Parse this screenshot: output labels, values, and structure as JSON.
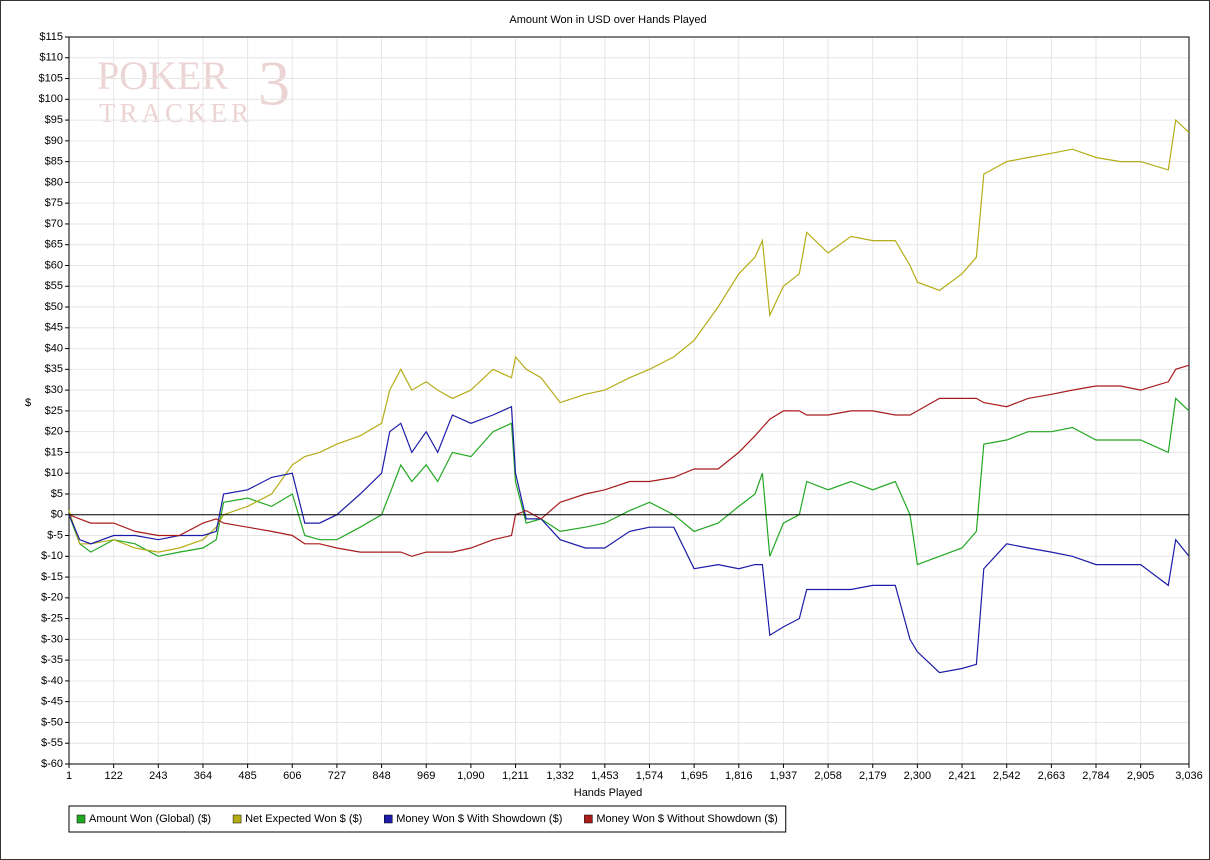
{
  "chart_data": {
    "type": "line",
    "title": "Amount Won in USD over Hands Played",
    "xlabel": "Hands Played",
    "ylabel": "$",
    "logo": {
      "line1": "POKER",
      "line2": "TRACKER",
      "mark": "3"
    },
    "xlim": [
      1,
      3036
    ],
    "ylim": [
      -60,
      115
    ],
    "grid": true,
    "zero_line": true,
    "legend": "bottom-left",
    "xticks": [
      1,
      122,
      243,
      364,
      485,
      606,
      727,
      848,
      969,
      {
        "value": 1090,
        "label": "1,090"
      },
      {
        "value": 1211,
        "label": "1,211"
      },
      {
        "value": 1332,
        "label": "1,332"
      },
      {
        "value": 1453,
        "label": "1,453"
      },
      {
        "value": 1574,
        "label": "1,574"
      },
      {
        "value": 1695,
        "label": "1,695"
      },
      {
        "value": 1816,
        "label": "1,816"
      },
      {
        "value": 1937,
        "label": "1,937"
      },
      {
        "value": 2058,
        "label": "2,058"
      },
      {
        "value": 2179,
        "label": "2,179"
      },
      {
        "value": 2300,
        "label": "2,300"
      },
      {
        "value": 2421,
        "label": "2,421"
      },
      {
        "value": 2542,
        "label": "2,542"
      },
      {
        "value": 2663,
        "label": "2,663"
      },
      {
        "value": 2784,
        "label": "2,784"
      },
      {
        "value": 2905,
        "label": "2,905"
      },
      {
        "value": 3036,
        "label": "3,036"
      }
    ],
    "yticks": [
      {
        "value": 115,
        "label": "$115"
      },
      {
        "value": 110,
        "label": "$110"
      },
      {
        "value": 105,
        "label": "$105"
      },
      {
        "value": 100,
        "label": "$100"
      },
      {
        "value": 95,
        "label": "$95"
      },
      {
        "value": 90,
        "label": "$90"
      },
      {
        "value": 85,
        "label": "$85"
      },
      {
        "value": 80,
        "label": "$80"
      },
      {
        "value": 75,
        "label": "$75"
      },
      {
        "value": 70,
        "label": "$70"
      },
      {
        "value": 65,
        "label": "$65"
      },
      {
        "value": 60,
        "label": "$60"
      },
      {
        "value": 55,
        "label": "$55"
      },
      {
        "value": 50,
        "label": "$50"
      },
      {
        "value": 45,
        "label": "$45"
      },
      {
        "value": 40,
        "label": "$40"
      },
      {
        "value": 35,
        "label": "$35"
      },
      {
        "value": 30,
        "label": "$30"
      },
      {
        "value": 25,
        "label": "$25"
      },
      {
        "value": 20,
        "label": "$20"
      },
      {
        "value": 15,
        "label": "$15"
      },
      {
        "value": 10,
        "label": "$10"
      },
      {
        "value": 5,
        "label": "$5"
      },
      {
        "value": 0,
        "label": "$0"
      },
      {
        "value": -5,
        "label": "$-5"
      },
      {
        "value": -10,
        "label": "$-10"
      },
      {
        "value": -15,
        "label": "$-15"
      },
      {
        "value": -20,
        "label": "$-20"
      },
      {
        "value": -25,
        "label": "$-25"
      },
      {
        "value": -30,
        "label": "$-30"
      },
      {
        "value": -35,
        "label": "$-35"
      },
      {
        "value": -40,
        "label": "$-40"
      },
      {
        "value": -45,
        "label": "$-45"
      },
      {
        "value": -50,
        "label": "$-50"
      },
      {
        "value": -55,
        "label": "$-55"
      },
      {
        "value": -60,
        "label": "$-60"
      }
    ],
    "x": [
      1,
      30,
      60,
      122,
      180,
      243,
      300,
      364,
      400,
      420,
      485,
      550,
      606,
      640,
      680,
      727,
      790,
      848,
      870,
      900,
      930,
      969,
      1000,
      1040,
      1090,
      1150,
      1200,
      1211,
      1240,
      1280,
      1332,
      1400,
      1453,
      1520,
      1574,
      1640,
      1695,
      1760,
      1816,
      1860,
      1880,
      1900,
      1937,
      1980,
      2000,
      2058,
      2120,
      2179,
      2240,
      2280,
      2300,
      2360,
      2421,
      2460,
      2480,
      2542,
      2600,
      2663,
      2720,
      2784,
      2850,
      2905,
      2980,
      3000,
      3036
    ],
    "series": [
      {
        "name": "Amount Won (Global) ($)",
        "color": "#22a822",
        "values": [
          0,
          -7,
          -9,
          -6,
          -7,
          -10,
          -9,
          -8,
          -6,
          3,
          4,
          2,
          5,
          -5,
          -6,
          -6,
          -3,
          0,
          5,
          12,
          8,
          12,
          8,
          15,
          14,
          20,
          22,
          8,
          -2,
          -1,
          -4,
          -3,
          -2,
          1,
          3,
          0,
          -4,
          -2,
          2,
          5,
          10,
          -10,
          -2,
          0,
          8,
          6,
          8,
          6,
          8,
          0,
          -12,
          -10,
          -8,
          -4,
          17,
          18,
          20,
          20,
          21,
          18,
          18,
          18,
          15,
          28,
          25
        ]
      },
      {
        "name": "Net Expected Won $ ($)",
        "color": "#b5ad18",
        "values": [
          1,
          -7,
          -7,
          -6,
          -8,
          -9,
          -8,
          -6,
          -3,
          0,
          2,
          5,
          12,
          14,
          15,
          17,
          19,
          22,
          30,
          35,
          30,
          32,
          30,
          28,
          30,
          35,
          33,
          38,
          35,
          33,
          27,
          29,
          30,
          33,
          35,
          38,
          42,
          50,
          58,
          62,
          66,
          48,
          55,
          58,
          68,
          63,
          67,
          66,
          66,
          60,
          56,
          54,
          58,
          62,
          82,
          85,
          86,
          87,
          88,
          86,
          85,
          85,
          83,
          95,
          92
        ]
      },
      {
        "name": "Money Won $ With Showdown ($)",
        "color": "#1c1ca8",
        "values": [
          0,
          -6,
          -7,
          -5,
          -5,
          -6,
          -5,
          -5,
          -4,
          5,
          6,
          9,
          10,
          -2,
          -2,
          0,
          5,
          10,
          20,
          22,
          15,
          20,
          15,
          24,
          22,
          24,
          26,
          10,
          -1,
          -1,
          -6,
          -8,
          -8,
          -4,
          -3,
          -3,
          -13,
          -12,
          -13,
          -12,
          -12,
          -29,
          -27,
          -25,
          -18,
          -18,
          -18,
          -17,
          -17,
          -30,
          -33,
          -38,
          -37,
          -36,
          -13,
          -7,
          -8,
          -9,
          -10,
          -12,
          -12,
          -12,
          -17,
          -6,
          -10
        ]
      },
      {
        "name": "Money Won $ Without Showdown ($)",
        "color": "#a81c1c",
        "values": [
          0,
          -1,
          -2,
          -2,
          -4,
          -5,
          -5,
          -2,
          -1,
          -2,
          -3,
          -4,
          -5,
          -7,
          -7,
          -8,
          -9,
          -9,
          -9,
          -9,
          -10,
          -9,
          -9,
          -9,
          -8,
          -6,
          -5,
          0,
          1,
          -1,
          3,
          5,
          6,
          8,
          8,
          9,
          11,
          11,
          15,
          19,
          21,
          23,
          25,
          25,
          24,
          24,
          25,
          25,
          24,
          24,
          25,
          28,
          28,
          28,
          27,
          26,
          28,
          29,
          30,
          31,
          31,
          30,
          32,
          35,
          36
        ]
      }
    ]
  }
}
